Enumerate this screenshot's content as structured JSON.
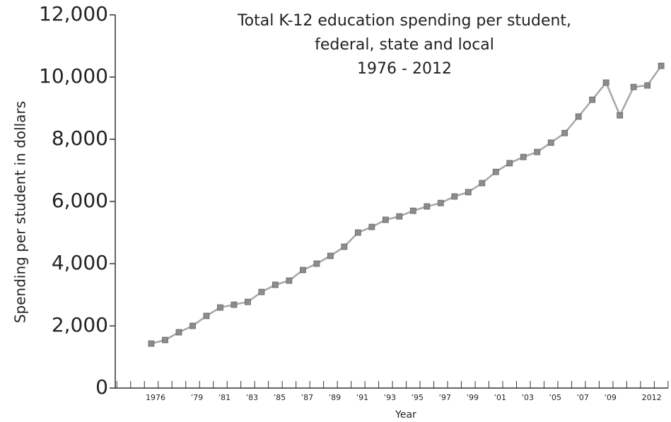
{
  "chart_data": {
    "type": "line",
    "title": [
      "Total K-12 education spending per student,",
      "federal, state and local",
      "1976 - 2012"
    ],
    "x_label": "Year",
    "y_label": "Spending per student in dollars",
    "categories": [
      "1976",
      null,
      null,
      "’79",
      null,
      "’81",
      null,
      "’83",
      null,
      "’85",
      null,
      "’87",
      null,
      "’89",
      null,
      "’91",
      null,
      "’93",
      null,
      "’95",
      null,
      "’97",
      null,
      "’99",
      null,
      "’01",
      null,
      "’03",
      null,
      "’05",
      null,
      "’07",
      null,
      "’09",
      null,
      null,
      "2012",
      null
    ],
    "series": [
      {
        "name": "Spending per student",
        "color": "#a6a6a6",
        "marker_color": "#8c8c8c",
        "values": [
          1430,
          1545,
          1795,
          2000,
          2320,
          2590,
          2680,
          2770,
          3090,
          3320,
          3455,
          3795,
          4000,
          4250,
          4545,
          5000,
          5180,
          5410,
          5520,
          5700,
          5840,
          5950,
          6160,
          6300,
          6590,
          6950,
          7230,
          7430,
          7590,
          7890,
          8200,
          8730,
          9270,
          9820,
          8770,
          9680,
          9730,
          10360
        ]
      }
    ],
    "ylim": [
      0,
      12000
    ],
    "yticks": [
      0,
      {
        "value": 2000,
        "label": "2,000"
      },
      {
        "value": 4000,
        "label": "4,000"
      },
      {
        "value": 6000,
        "label": "6,000"
      },
      {
        "value": 8000,
        "label": "8,000"
      },
      {
        "value": 10000,
        "label": "10,000"
      },
      {
        "value": 12000,
        "label": "12,000"
      }
    ],
    "grid": false
  }
}
